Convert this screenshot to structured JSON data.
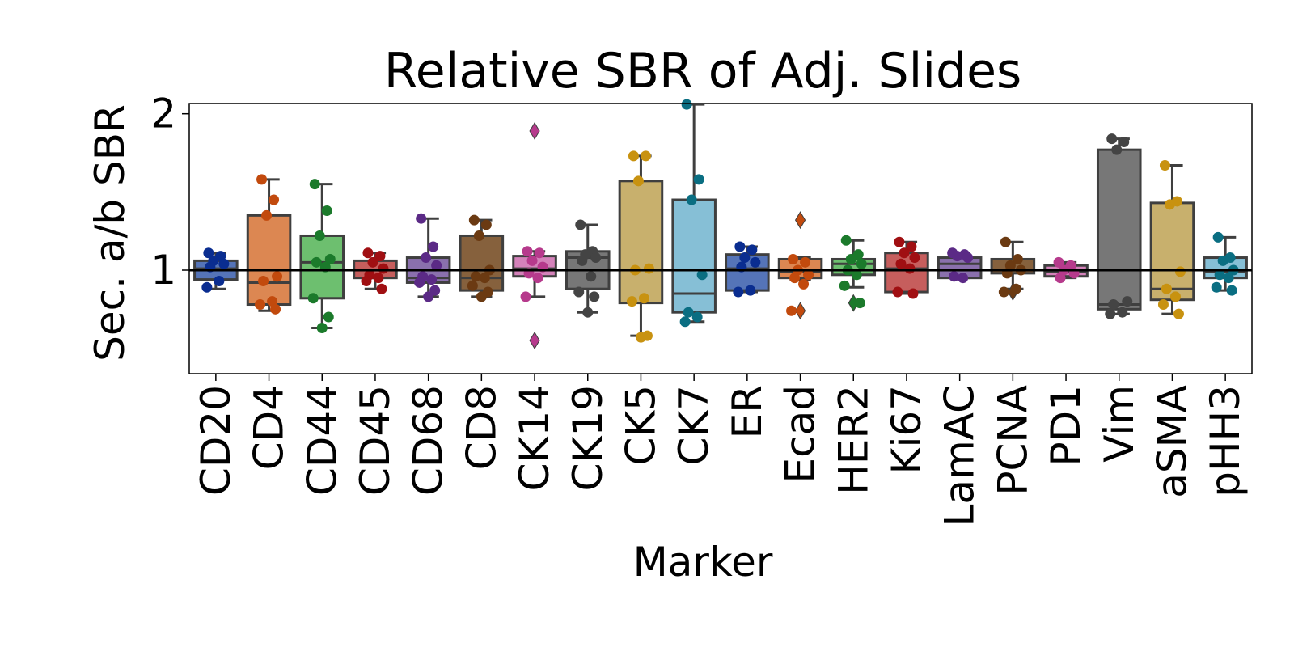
{
  "chart_data": {
    "type": "box",
    "title": "Relative SBR of Adj. Slides",
    "xlabel": "Marker",
    "ylabel": "Sec. a/b SBR",
    "ylim": [
      0.5,
      2.15
    ],
    "yticks": [
      1,
      2
    ],
    "yticklabels": [
      "1",
      "2"
    ],
    "reference_line": 1,
    "categories": [
      "CD20",
      "CD4",
      "CD44",
      "CD45",
      "CD68",
      "CD8",
      "CK14",
      "CK19",
      "CK5",
      "CK7",
      "ER",
      "Ecad",
      "HER2",
      "Ki67",
      "LamAC",
      "PCNA",
      "PD1",
      "Vim",
      "aSMA",
      "pHH3"
    ],
    "box_colors": [
      "#5574b8",
      "#dc8752",
      "#6dbf6f",
      "#c65e5d",
      "#8a70ad",
      "#86613d",
      "#d482ba",
      "#777777",
      "#c8b06d",
      "#86bfd6",
      "#5574b8",
      "#dc8752",
      "#6dbf6f",
      "#c65e5d",
      "#8a70ad",
      "#86613d",
      "#d482ba",
      "#777777",
      "#c8b06d",
      "#86bfd6"
    ],
    "point_colors": [
      "#0a2d90",
      "#c24a0d",
      "#1b7a2b",
      "#a00f12",
      "#5b2a86",
      "#6b3a12",
      "#b63a8c",
      "#444444",
      "#c89210",
      "#0a6e82",
      "#0a2d90",
      "#c24a0d",
      "#1b7a2b",
      "#a00f12",
      "#5b2a86",
      "#6b3a12",
      "#b63a8c",
      "#444444",
      "#c89210",
      "#0a6e82"
    ],
    "boxes": [
      {
        "whislo": 0.88,
        "q1": 0.94,
        "med": 1.01,
        "q3": 1.06,
        "whishi": 1.11
      },
      {
        "whislo": 0.74,
        "q1": 0.78,
        "med": 0.92,
        "q3": 1.35,
        "whishi": 1.58
      },
      {
        "whislo": 0.63,
        "q1": 0.82,
        "med": 1.05,
        "q3": 1.22,
        "whishi": 1.55
      },
      {
        "whislo": 0.88,
        "q1": 0.95,
        "med": 1.0,
        "q3": 1.06,
        "whishi": 1.11
      },
      {
        "whislo": 0.83,
        "q1": 0.92,
        "med": 0.95,
        "q3": 1.08,
        "whishi": 1.33
      },
      {
        "whislo": 0.83,
        "q1": 0.87,
        "med": 0.95,
        "q3": 1.22,
        "whishi": 1.32
      },
      {
        "whislo": 0.83,
        "q1": 0.96,
        "med": 1.01,
        "q3": 1.09,
        "whishi": 1.12
      },
      {
        "whislo": 0.73,
        "q1": 0.88,
        "med": 1.08,
        "q3": 1.12,
        "whishi": 1.29
      },
      {
        "whislo": 0.58,
        "q1": 0.79,
        "med": 1.0,
        "q3": 1.57,
        "whishi": 1.73
      },
      {
        "whislo": 0.67,
        "q1": 0.73,
        "med": 0.85,
        "q3": 1.45,
        "whishi": 2.06
      },
      {
        "whislo": 0.86,
        "q1": 0.87,
        "med": 1.01,
        "q3": 1.1,
        "whishi": 1.15
      },
      {
        "whislo": 0.94,
        "q1": 0.95,
        "med": 0.99,
        "q3": 1.07,
        "whishi": 1.08
      },
      {
        "whislo": 0.89,
        "q1": 0.97,
        "med": 1.04,
        "q3": 1.07,
        "whishi": 1.19
      },
      {
        "whislo": 0.85,
        "q1": 0.86,
        "med": 1.01,
        "q3": 1.11,
        "whishi": 1.18
      },
      {
        "whislo": 0.95,
        "q1": 0.95,
        "med": 1.04,
        "q3": 1.08,
        "whishi": 1.11
      },
      {
        "whislo": 0.88,
        "q1": 0.98,
        "med": 1.0,
        "q3": 1.07,
        "whishi": 1.18
      },
      {
        "whislo": 0.95,
        "q1": 0.96,
        "med": 0.99,
        "q3": 1.03,
        "whishi": 1.05
      },
      {
        "whislo": 0.72,
        "q1": 0.75,
        "med": 0.78,
        "q3": 1.77,
        "whishi": 1.84
      },
      {
        "whislo": 0.72,
        "q1": 0.81,
        "med": 0.88,
        "q3": 1.43,
        "whishi": 1.67
      },
      {
        "whislo": 0.87,
        "q1": 0.95,
        "med": 0.99,
        "q3": 1.08,
        "whishi": 1.21
      }
    ],
    "points": [
      [
        1.11,
        1.09,
        1.06,
        1.04,
        1.02,
        0.93,
        0.89
      ],
      [
        1.58,
        1.45,
        1.35,
        0.96,
        0.93,
        0.8,
        0.78,
        0.75
      ],
      [
        1.55,
        1.38,
        1.22,
        1.07,
        1.05,
        1.02,
        0.82,
        0.7,
        0.63
      ],
      [
        1.11,
        1.09,
        1.05,
        1.01,
        0.97,
        0.95,
        0.93,
        0.88
      ],
      [
        1.33,
        1.15,
        1.08,
        1.03,
        0.96,
        0.94,
        0.92,
        0.87,
        0.83
      ],
      [
        1.32,
        1.29,
        1.22,
        1.0,
        0.96,
        0.95,
        0.9,
        0.86,
        0.83
      ],
      [
        1.12,
        1.11,
        1.06,
        1.02,
        0.98,
        0.95,
        0.83
      ],
      [
        1.29,
        1.12,
        1.1,
        1.08,
        1.06,
        0.96,
        0.86,
        0.83,
        0.73
      ],
      [
        1.73,
        1.73,
        1.57,
        1.01,
        1.0,
        0.82,
        0.8,
        0.58,
        0.57
      ],
      [
        2.06,
        1.58,
        1.45,
        0.97,
        0.73,
        0.7,
        0.67
      ],
      [
        1.15,
        1.13,
        1.08,
        1.05,
        1.02,
        0.87,
        0.86
      ],
      [
        1.07,
        1.05,
        1.0,
        0.97,
        0.95,
        0.91,
        0.74
      ],
      [
        1.19,
        1.1,
        1.07,
        1.04,
        1.0,
        0.97,
        0.9,
        0.79
      ],
      [
        1.18,
        1.15,
        1.11,
        1.08,
        1.04,
        1.01,
        0.86,
        0.85
      ],
      [
        1.11,
        1.1,
        1.09,
        1.08,
        0.96,
        0.95
      ],
      [
        1.18,
        1.07,
        1.03,
        1.0,
        0.98,
        0.88,
        0.86
      ],
      [
        1.05,
        1.03,
        1.0,
        0.98,
        0.95
      ],
      [
        1.84,
        1.82,
        1.77,
        0.8,
        0.78,
        0.73,
        0.72
      ],
      [
        1.67,
        1.44,
        1.42,
        0.99,
        0.88,
        0.83,
        0.78,
        0.72
      ],
      [
        1.21,
        1.08,
        1.06,
        1.0,
        0.97,
        0.95,
        0.89,
        0.87
      ]
    ],
    "outliers": [
      {
        "category": "CK14",
        "values": [
          1.89,
          0.55
        ]
      },
      {
        "category": "Ecad",
        "values": [
          1.32,
          0.74
        ]
      },
      {
        "category": "HER2",
        "values": [
          0.79
        ]
      },
      {
        "category": "PCNA",
        "values": [
          0.86
        ]
      }
    ]
  }
}
